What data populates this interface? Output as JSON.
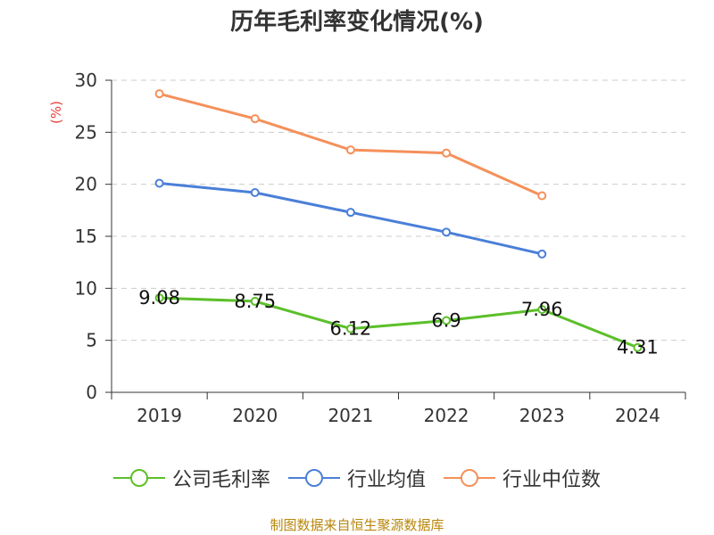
{
  "title": "历年毛利率变化情况(%)",
  "source": "制图数据来自恒生聚源数据库",
  "colors": {
    "company": "#5cbf2a",
    "avg": "#4a7fd9",
    "median": "#f5905a",
    "ylabel": "#e8403a"
  },
  "chart_data": {
    "type": "line",
    "title": "历年毛利率变化情况(%)",
    "ylabel": "(%)",
    "xlabel": "",
    "categories": [
      "2019",
      "2020",
      "2021",
      "2022",
      "2023",
      "2024"
    ],
    "ylim": [
      0,
      30
    ],
    "yticks": [
      0,
      5,
      10,
      15,
      20,
      25,
      30
    ],
    "grid": true,
    "legend_position": "bottom",
    "series": [
      {
        "name": "公司毛利率",
        "values": [
          9.08,
          8.75,
          6.12,
          6.9,
          7.96,
          4.31
        ],
        "labels": [
          "9.08",
          "8.75",
          "6.12",
          "6.9",
          "7.96",
          "4.31"
        ],
        "color": "#5cbf2a"
      },
      {
        "name": "行业均值",
        "values": [
          20.1,
          19.2,
          17.3,
          15.4,
          13.3,
          null
        ],
        "color": "#4a7fd9"
      },
      {
        "name": "行业中位数",
        "values": [
          28.7,
          26.3,
          23.3,
          23.0,
          18.9,
          null
        ],
        "color": "#f5905a"
      }
    ]
  }
}
